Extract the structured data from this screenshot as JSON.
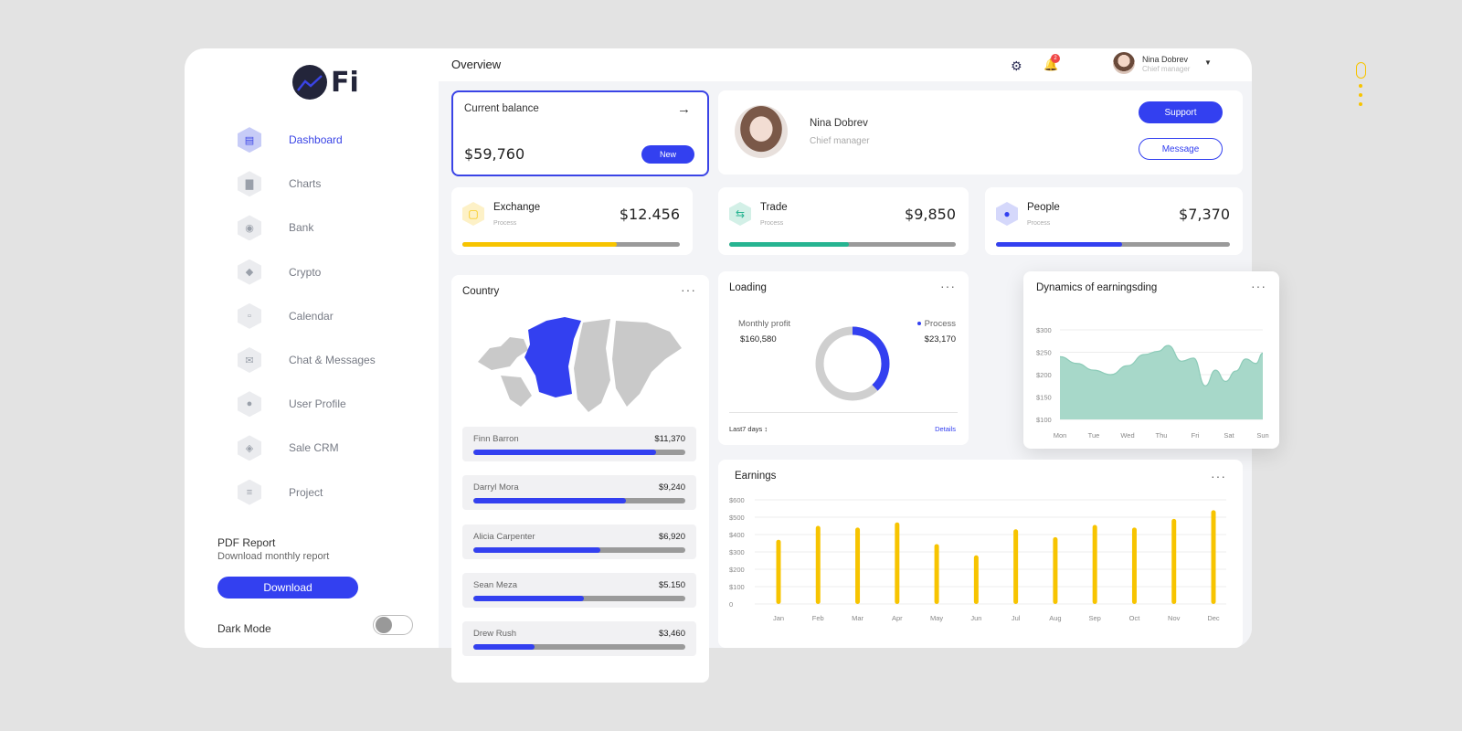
{
  "app": {
    "logo_text": "Fi",
    "header_title": "Overview"
  },
  "sidebar": {
    "items": [
      {
        "label": "Dashboard",
        "icon": "dashboard-icon",
        "active": true
      },
      {
        "label": "Charts",
        "icon": "charts-icon",
        "active": false
      },
      {
        "label": "Bank",
        "icon": "bank-icon",
        "active": false
      },
      {
        "label": "Crypto",
        "icon": "crypto-icon",
        "active": false
      },
      {
        "label": "Calendar",
        "icon": "calendar-icon",
        "active": false
      },
      {
        "label": "Chat & Messages",
        "icon": "chat-icon",
        "active": false
      },
      {
        "label": "User Profile",
        "icon": "user-icon",
        "active": false
      },
      {
        "label": "Sale CRM",
        "icon": "tag-icon",
        "active": false
      },
      {
        "label": "Project",
        "icon": "project-icon",
        "active": false
      }
    ],
    "pdf_title": "PDF Report",
    "pdf_subtitle": "Download monthly report",
    "download_label": "Download",
    "dark_mode_label": "Dark Mode",
    "dark_mode_on": false
  },
  "header": {
    "notification_count": "2",
    "user_name": "Nina  Dobrev",
    "user_role": "Chief  manager"
  },
  "balance": {
    "label": "Current balance",
    "amount": "$59,760",
    "new_label": "New"
  },
  "profile": {
    "name": "Nina  Dobrev",
    "role": "Chief  manager",
    "support_label": "Support",
    "message_label": "Message"
  },
  "stats": [
    {
      "title": "Exchange",
      "sub": "Process",
      "value": "$12.456",
      "progress": 0.71,
      "color": "#f7c400",
      "icon_bg": "#fdf1c7"
    },
    {
      "title": "Trade",
      "sub": "Process",
      "value": "$9,850",
      "progress": 0.53,
      "color": "#26b491",
      "icon_bg": "#d3f0e7"
    },
    {
      "title": "People",
      "sub": "Process",
      "value": "$7,370",
      "progress": 0.54,
      "color": "#3340f0",
      "icon_bg": "#d5d8fb"
    }
  ],
  "country": {
    "title": "Country",
    "rows": [
      {
        "name": "Finn Barron",
        "value": "$11,370",
        "progress": 0.86
      },
      {
        "name": "Darryl Mora",
        "value": "$9,240",
        "progress": 0.72
      },
      {
        "name": "Alicia Carpenter",
        "value": "$6,920",
        "progress": 0.6
      },
      {
        "name": "Sean Meza",
        "value": "$5.150",
        "progress": 0.52
      },
      {
        "name": "Drew Rush",
        "value": "$3,460",
        "progress": 0.29
      }
    ]
  },
  "loading": {
    "title": "Loading",
    "monthly_label": "Monthly profit",
    "monthly_value": "$160,580",
    "process_label": "Process",
    "process_value": "$23,170",
    "donut_fraction": 0.38,
    "period_label": "Last7 days",
    "details_label": "Details"
  },
  "colors": {
    "accent": "#3340f0",
    "yellow": "#f7c400",
    "green": "#26b491",
    "area": "#a7d8c9"
  },
  "chart_data": [
    {
      "type": "area",
      "title": "Dynamics of earningsding",
      "categories": [
        "Mon",
        "Tue",
        "Wed",
        "Thu",
        "Fri",
        "Sat",
        "Sun"
      ],
      "y_ticks": [
        "$300",
        "$250",
        "$200",
        "$150",
        "$100"
      ],
      "ylim": [
        100,
        300
      ],
      "x": [
        0,
        0.5,
        1,
        1.5,
        2,
        2.5,
        2.9,
        3.2,
        3.6,
        3.95,
        4.3,
        4.6,
        4.9,
        5.2,
        5.5,
        5.8,
        6
      ],
      "values": [
        240,
        225,
        210,
        200,
        220,
        245,
        252,
        265,
        230,
        237,
        175,
        210,
        185,
        208,
        235,
        225,
        248
      ]
    },
    {
      "type": "bar",
      "title": "Earnings",
      "categories": [
        "Jan",
        "Feb",
        "Mar",
        "Apr",
        "May",
        "Jun",
        "Jul",
        "Aug",
        "Sep",
        "Oct",
        "Nov",
        "Dec"
      ],
      "y_ticks": [
        "$600",
        "$500",
        "$400",
        "$300",
        "$200",
        "$100",
        "0"
      ],
      "ylim": [
        0,
        600
      ],
      "values": [
        370,
        450,
        440,
        470,
        345,
        280,
        430,
        385,
        455,
        440,
        490,
        540
      ]
    }
  ]
}
